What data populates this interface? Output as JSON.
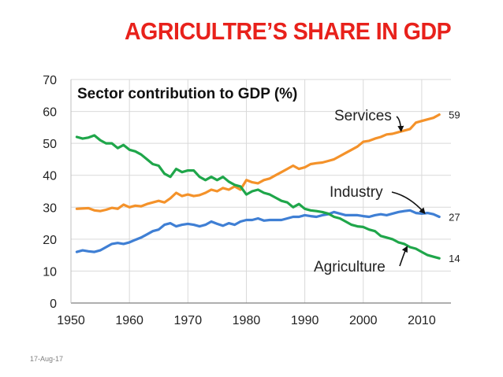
{
  "slide": {
    "title": "AGRICULTRE’S SHARE IN GDP",
    "date": "17-Aug-17"
  },
  "colors": {
    "title": "#e8211b",
    "services": "#f4922a",
    "industry": "#3f7fd4",
    "agriculture": "#1fa64a",
    "grid": "#d9d9d9"
  },
  "chart_data": {
    "type": "line",
    "title": "Sector contribution to GDP (%)",
    "xlabel": "",
    "ylabel": "",
    "xlim": [
      1950,
      2015
    ],
    "ylim": [
      0,
      70
    ],
    "x_ticks": [
      1950,
      1960,
      1970,
      1980,
      1990,
      2000,
      2010
    ],
    "y_ticks": [
      0,
      10,
      20,
      30,
      40,
      50,
      60,
      70
    ],
    "grid": true,
    "x": [
      1951,
      1952,
      1953,
      1954,
      1955,
      1956,
      1957,
      1958,
      1959,
      1960,
      1961,
      1962,
      1963,
      1964,
      1965,
      1966,
      1967,
      1968,
      1969,
      1970,
      1971,
      1972,
      1973,
      1974,
      1975,
      1976,
      1977,
      1978,
      1979,
      1980,
      1981,
      1982,
      1983,
      1984,
      1985,
      1986,
      1987,
      1988,
      1989,
      1990,
      1991,
      1992,
      1993,
      1994,
      1995,
      1996,
      1997,
      1998,
      1999,
      2000,
      2001,
      2002,
      2003,
      2004,
      2005,
      2006,
      2007,
      2008,
      2009,
      2010,
      2011,
      2012,
      2013
    ],
    "series": [
      {
        "name": "Services",
        "color_key": "services",
        "end_label": "59",
        "values": [
          29.5,
          29.6,
          29.7,
          29.0,
          28.8,
          29.2,
          29.8,
          29.5,
          30.8,
          30.0,
          30.5,
          30.3,
          31.0,
          31.5,
          32.0,
          31.5,
          32.8,
          34.5,
          33.5,
          34.0,
          33.5,
          33.8,
          34.5,
          35.5,
          35.0,
          36.0,
          35.5,
          36.5,
          35.5,
          38.5,
          37.8,
          37.5,
          38.5,
          39.0,
          40.0,
          41.0,
          42.0,
          43.0,
          42.0,
          42.5,
          43.5,
          43.8,
          44.0,
          44.5,
          45.0,
          46.0,
          47.0,
          48.0,
          49.0,
          50.5,
          50.8,
          51.5,
          52.0,
          52.8,
          53.0,
          53.5,
          54.0,
          54.5,
          56.5,
          57.0,
          57.5,
          58.0,
          59.0
        ]
      },
      {
        "name": "Industry",
        "color_key": "industry",
        "end_label": "27",
        "values": [
          16.0,
          16.5,
          16.2,
          16.0,
          16.5,
          17.5,
          18.5,
          18.8,
          18.5,
          19.0,
          19.8,
          20.5,
          21.5,
          22.5,
          23.0,
          24.5,
          25.0,
          24.0,
          24.5,
          24.8,
          24.5,
          24.0,
          24.5,
          25.5,
          24.8,
          24.2,
          25.0,
          24.5,
          25.5,
          26.0,
          26.0,
          26.5,
          25.8,
          26.0,
          26.0,
          26.0,
          26.5,
          27.0,
          27.0,
          27.5,
          27.2,
          27.0,
          27.5,
          27.8,
          28.5,
          28.0,
          27.5,
          27.5,
          27.5,
          27.2,
          27.0,
          27.5,
          27.8,
          27.5,
          28.0,
          28.5,
          28.8,
          29.0,
          28.2,
          28.0,
          28.2,
          27.8,
          27.0
        ]
      },
      {
        "name": "Agriculture",
        "color_key": "agriculture",
        "end_label": "14",
        "values": [
          52.0,
          51.5,
          51.8,
          52.5,
          51.0,
          50.0,
          50.0,
          48.5,
          49.5,
          48.0,
          47.5,
          46.5,
          45.0,
          43.5,
          43.0,
          40.5,
          39.5,
          42.0,
          41.0,
          41.5,
          41.5,
          39.5,
          38.5,
          39.5,
          38.5,
          39.5,
          38.0,
          37.0,
          36.5,
          34.0,
          35.0,
          35.5,
          34.5,
          34.0,
          33.0,
          32.0,
          31.5,
          30.0,
          31.0,
          29.5,
          29.0,
          28.8,
          28.5,
          28.0,
          27.0,
          26.5,
          25.5,
          24.5,
          24.0,
          23.8,
          23.0,
          22.5,
          21.0,
          20.5,
          20.0,
          19.0,
          18.5,
          17.5,
          17.0,
          16.0,
          15.0,
          14.5,
          14.0
        ]
      }
    ],
    "annotations": [
      {
        "series": "Services",
        "text": "Services",
        "at_x": 2007
      },
      {
        "series": "Industry",
        "text": "Industry",
        "at_x": 2011
      },
      {
        "series": "Agriculture",
        "text": "Agriculture",
        "at_x": 2008
      }
    ]
  }
}
